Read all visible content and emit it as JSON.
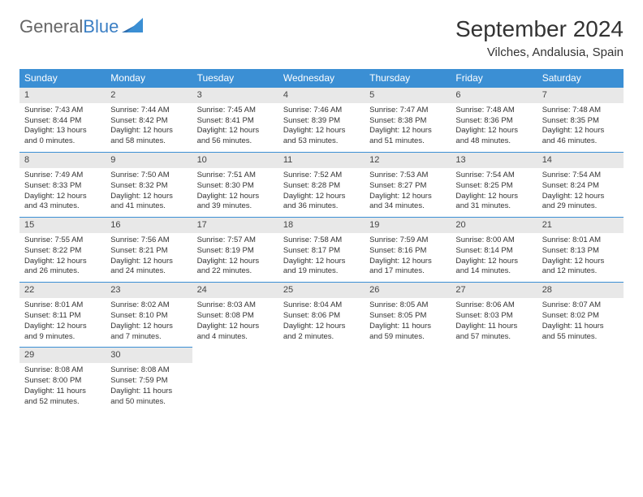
{
  "brand": {
    "part1": "General",
    "part2": "Blue"
  },
  "title": "September 2024",
  "location": "Vilches, Andalusia, Spain",
  "colors": {
    "header_bg": "#3b8fd4",
    "header_text": "#ffffff",
    "daynum_bg": "#e8e8e8",
    "border": "#3b8fd4",
    "brand_blue": "#3b7fc4"
  },
  "weekdays": [
    "Sunday",
    "Monday",
    "Tuesday",
    "Wednesday",
    "Thursday",
    "Friday",
    "Saturday"
  ],
  "days": [
    {
      "n": "1",
      "sunrise": "7:43 AM",
      "sunset": "8:44 PM",
      "dl": "13 hours and 0 minutes."
    },
    {
      "n": "2",
      "sunrise": "7:44 AM",
      "sunset": "8:42 PM",
      "dl": "12 hours and 58 minutes."
    },
    {
      "n": "3",
      "sunrise": "7:45 AM",
      "sunset": "8:41 PM",
      "dl": "12 hours and 56 minutes."
    },
    {
      "n": "4",
      "sunrise": "7:46 AM",
      "sunset": "8:39 PM",
      "dl": "12 hours and 53 minutes."
    },
    {
      "n": "5",
      "sunrise": "7:47 AM",
      "sunset": "8:38 PM",
      "dl": "12 hours and 51 minutes."
    },
    {
      "n": "6",
      "sunrise": "7:48 AM",
      "sunset": "8:36 PM",
      "dl": "12 hours and 48 minutes."
    },
    {
      "n": "7",
      "sunrise": "7:48 AM",
      "sunset": "8:35 PM",
      "dl": "12 hours and 46 minutes."
    },
    {
      "n": "8",
      "sunrise": "7:49 AM",
      "sunset": "8:33 PM",
      "dl": "12 hours and 43 minutes."
    },
    {
      "n": "9",
      "sunrise": "7:50 AM",
      "sunset": "8:32 PM",
      "dl": "12 hours and 41 minutes."
    },
    {
      "n": "10",
      "sunrise": "7:51 AM",
      "sunset": "8:30 PM",
      "dl": "12 hours and 39 minutes."
    },
    {
      "n": "11",
      "sunrise": "7:52 AM",
      "sunset": "8:28 PM",
      "dl": "12 hours and 36 minutes."
    },
    {
      "n": "12",
      "sunrise": "7:53 AM",
      "sunset": "8:27 PM",
      "dl": "12 hours and 34 minutes."
    },
    {
      "n": "13",
      "sunrise": "7:54 AM",
      "sunset": "8:25 PM",
      "dl": "12 hours and 31 minutes."
    },
    {
      "n": "14",
      "sunrise": "7:54 AM",
      "sunset": "8:24 PM",
      "dl": "12 hours and 29 minutes."
    },
    {
      "n": "15",
      "sunrise": "7:55 AM",
      "sunset": "8:22 PM",
      "dl": "12 hours and 26 minutes."
    },
    {
      "n": "16",
      "sunrise": "7:56 AM",
      "sunset": "8:21 PM",
      "dl": "12 hours and 24 minutes."
    },
    {
      "n": "17",
      "sunrise": "7:57 AM",
      "sunset": "8:19 PM",
      "dl": "12 hours and 22 minutes."
    },
    {
      "n": "18",
      "sunrise": "7:58 AM",
      "sunset": "8:17 PM",
      "dl": "12 hours and 19 minutes."
    },
    {
      "n": "19",
      "sunrise": "7:59 AM",
      "sunset": "8:16 PM",
      "dl": "12 hours and 17 minutes."
    },
    {
      "n": "20",
      "sunrise": "8:00 AM",
      "sunset": "8:14 PM",
      "dl": "12 hours and 14 minutes."
    },
    {
      "n": "21",
      "sunrise": "8:01 AM",
      "sunset": "8:13 PM",
      "dl": "12 hours and 12 minutes."
    },
    {
      "n": "22",
      "sunrise": "8:01 AM",
      "sunset": "8:11 PM",
      "dl": "12 hours and 9 minutes."
    },
    {
      "n": "23",
      "sunrise": "8:02 AM",
      "sunset": "8:10 PM",
      "dl": "12 hours and 7 minutes."
    },
    {
      "n": "24",
      "sunrise": "8:03 AM",
      "sunset": "8:08 PM",
      "dl": "12 hours and 4 minutes."
    },
    {
      "n": "25",
      "sunrise": "8:04 AM",
      "sunset": "8:06 PM",
      "dl": "12 hours and 2 minutes."
    },
    {
      "n": "26",
      "sunrise": "8:05 AM",
      "sunset": "8:05 PM",
      "dl": "11 hours and 59 minutes."
    },
    {
      "n": "27",
      "sunrise": "8:06 AM",
      "sunset": "8:03 PM",
      "dl": "11 hours and 57 minutes."
    },
    {
      "n": "28",
      "sunrise": "8:07 AM",
      "sunset": "8:02 PM",
      "dl": "11 hours and 55 minutes."
    },
    {
      "n": "29",
      "sunrise": "8:08 AM",
      "sunset": "8:00 PM",
      "dl": "11 hours and 52 minutes."
    },
    {
      "n": "30",
      "sunrise": "8:08 AM",
      "sunset": "7:59 PM",
      "dl": "11 hours and 50 minutes."
    }
  ],
  "labels": {
    "sunrise": "Sunrise:",
    "sunset": "Sunset:",
    "daylight": "Daylight:"
  }
}
